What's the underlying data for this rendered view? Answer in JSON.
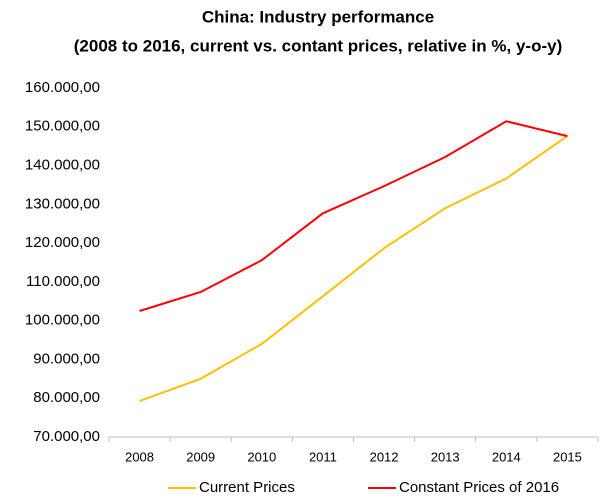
{
  "chart_data": {
    "type": "line",
    "title": "China: Industry performance",
    "subtitle": "(2008 to 2016, current vs. contant prices, relative in %, y-o-y)",
    "categories": [
      "2008",
      "2009",
      "2010",
      "2011",
      "2012",
      "2013",
      "2014",
      "2015"
    ],
    "series": [
      {
        "name": "Current Prices",
        "color": "#ffc000",
        "values": [
          79300,
          85000,
          94000,
          106300,
          118700,
          129000,
          136700,
          147600
        ]
      },
      {
        "name": "Constant Prices of 2016",
        "color": "#ff0000",
        "values": [
          102500,
          107400,
          115600,
          127700,
          134700,
          142200,
          151400,
          147600
        ]
      }
    ],
    "ylim": [
      70000,
      160000
    ],
    "yticks": [
      {
        "value": 70000,
        "label": "70.000,00"
      },
      {
        "value": 80000,
        "label": "80.000,00"
      },
      {
        "value": 90000,
        "label": "90.000,00"
      },
      {
        "value": 100000,
        "label": "100.000,00"
      },
      {
        "value": 110000,
        "label": "110.000,00"
      },
      {
        "value": 120000,
        "label": "120.000,00"
      },
      {
        "value": 130000,
        "label": "130.000,00"
      },
      {
        "value": 140000,
        "label": "140.000,00"
      },
      {
        "value": 150000,
        "label": "150.000,00"
      },
      {
        "value": 160000,
        "label": "160.000,00"
      }
    ],
    "grid": false,
    "legend": "bottom"
  }
}
